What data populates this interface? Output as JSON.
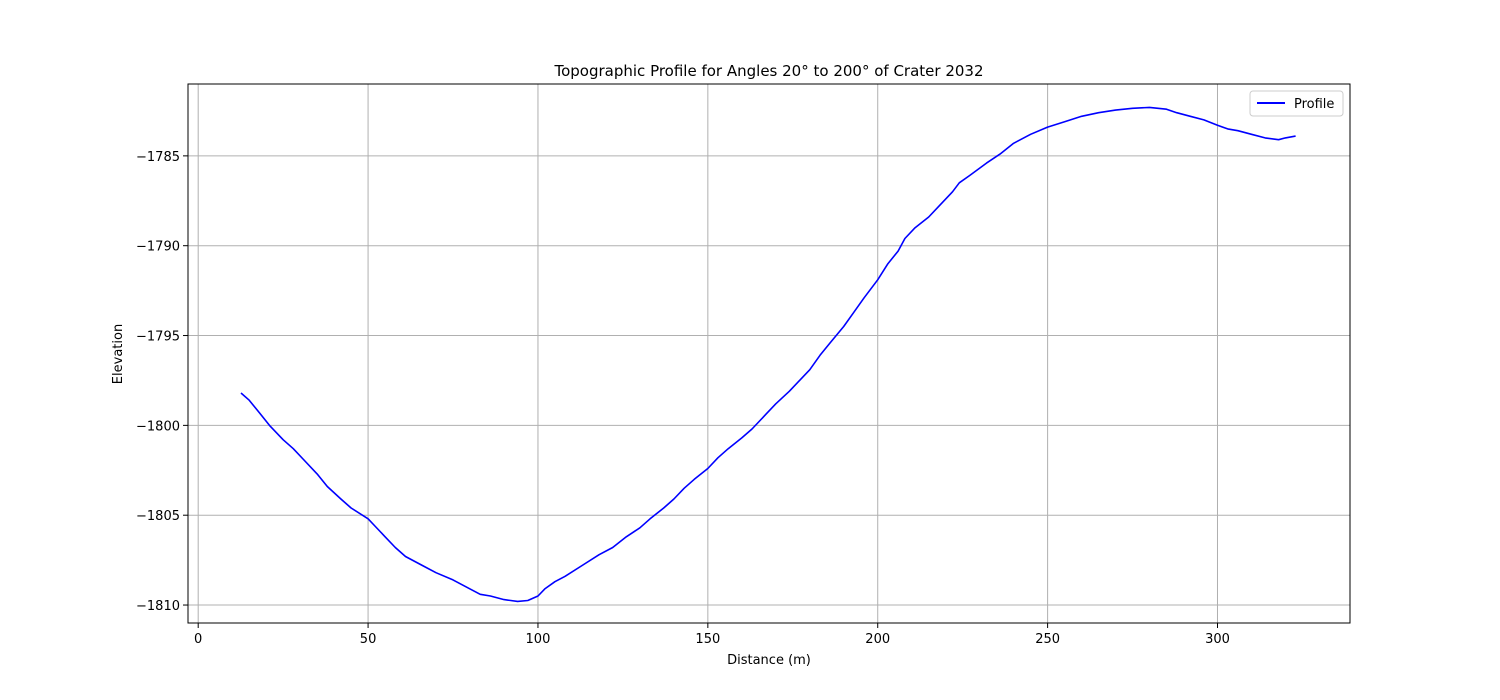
{
  "chart_data": {
    "type": "line",
    "title": "Topographic Profile for Angles 20° to 200° of Crater 2032",
    "xlabel": "Distance (m)",
    "ylabel": "Elevation",
    "xlim": [
      -3,
      339
    ],
    "ylim": [
      -1811,
      -1781
    ],
    "xticks": [
      0,
      50,
      100,
      150,
      200,
      250,
      300
    ],
    "xtick_labels": [
      "0",
      "50",
      "100",
      "150",
      "200",
      "250",
      "300"
    ],
    "yticks": [
      -1810,
      -1805,
      -1800,
      -1795,
      -1790,
      -1785
    ],
    "ytick_labels": [
      "−1810",
      "−1805",
      "−1800",
      "−1795",
      "−1790",
      "−1785"
    ],
    "grid": true,
    "legend_position": "top-right",
    "series": [
      {
        "name": "Profile",
        "color": "#0000ff",
        "x": [
          12.6,
          15,
          18,
          21,
          25,
          28,
          31,
          35,
          38,
          42,
          45,
          50,
          52,
          55,
          58,
          61,
          66,
          70,
          75,
          80,
          83,
          86,
          90,
          94,
          97,
          100,
          102,
          105,
          108,
          113,
          118,
          122,
          126,
          130,
          133,
          137,
          140,
          143,
          146,
          150,
          153,
          156,
          160,
          163,
          167,
          170,
          174,
          177,
          180,
          183,
          186,
          190,
          193,
          196,
          200,
          203,
          206,
          208,
          211,
          215,
          218,
          222,
          224,
          227,
          232,
          236,
          240,
          245,
          250,
          255,
          260,
          265,
          270,
          275,
          280,
          285,
          288,
          292,
          296,
          300,
          303,
          306,
          310,
          314,
          318,
          320,
          323
        ],
        "y": [
          -1798.2,
          -1798.6,
          -1799.3,
          -1800.0,
          -1800.8,
          -1801.3,
          -1801.9,
          -1802.7,
          -1803.4,
          -1804.1,
          -1804.6,
          -1805.2,
          -1805.6,
          -1806.2,
          -1806.8,
          -1807.3,
          -1807.8,
          -1808.2,
          -1808.6,
          -1809.1,
          -1809.4,
          -1809.5,
          -1809.7,
          -1809.8,
          -1809.75,
          -1809.5,
          -1809.1,
          -1808.7,
          -1808.4,
          -1807.8,
          -1807.2,
          -1806.8,
          -1806.2,
          -1805.7,
          -1805.2,
          -1804.6,
          -1804.1,
          -1803.5,
          -1803.0,
          -1802.4,
          -1801.8,
          -1801.3,
          -1800.7,
          -1800.2,
          -1799.4,
          -1798.8,
          -1798.1,
          -1797.5,
          -1796.9,
          -1796.1,
          -1795.4,
          -1794.5,
          -1793.7,
          -1792.9,
          -1791.9,
          -1791.0,
          -1790.3,
          -1789.6,
          -1789.0,
          -1788.4,
          -1787.8,
          -1787.0,
          -1786.5,
          -1786.1,
          -1785.4,
          -1784.9,
          -1784.3,
          -1783.8,
          -1783.4,
          -1783.1,
          -1782.8,
          -1782.6,
          -1782.45,
          -1782.35,
          -1782.3,
          -1782.4,
          -1782.6,
          -1782.8,
          -1783.0,
          -1783.3,
          -1783.5,
          -1783.6,
          -1783.8,
          -1784.0,
          -1784.1,
          -1784.0,
          -1783.9
        ]
      }
    ]
  }
}
